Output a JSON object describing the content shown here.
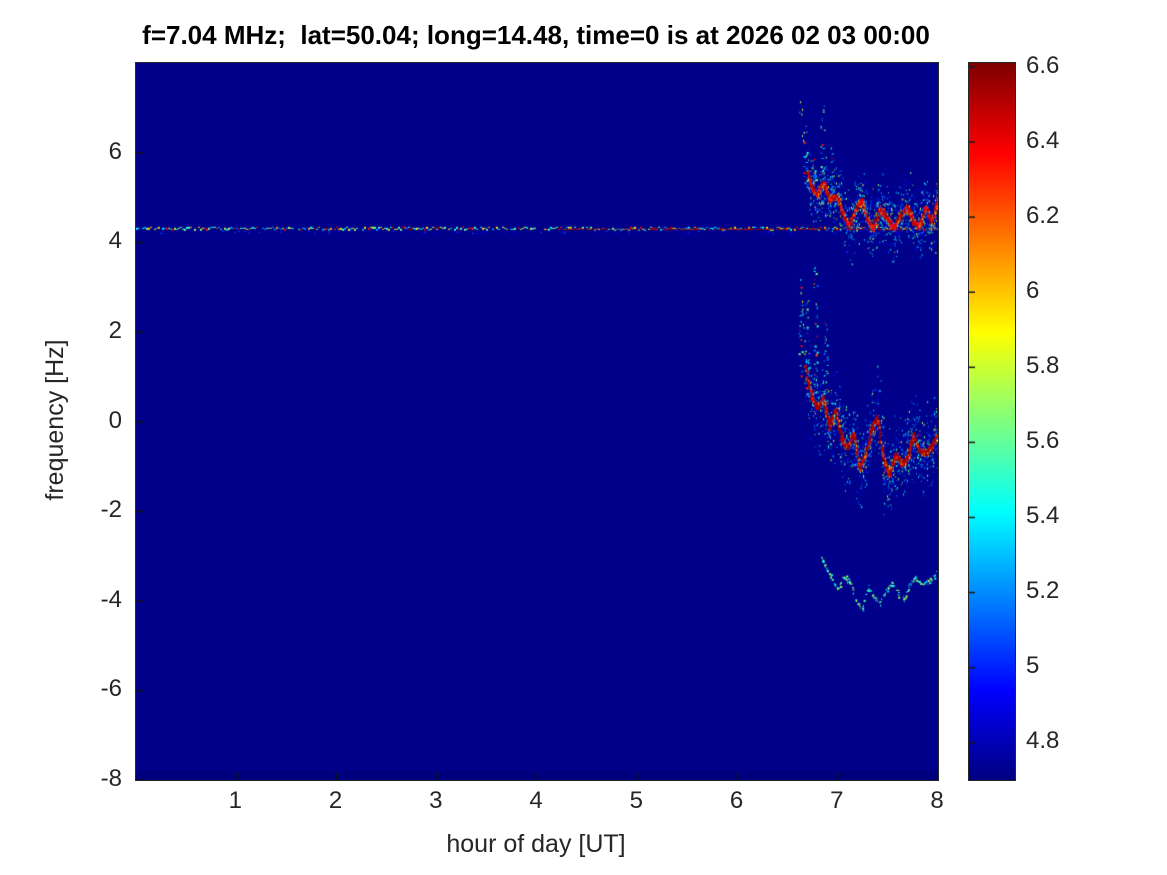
{
  "chart_data": {
    "type": "heatmap",
    "subtype": "doppler-spectrogram",
    "title": "f=7.04 MHz;  lat=50.04; long=14.48, time=0 is at 2026 02 03 00:00",
    "xlabel": "hour of day [UT]",
    "ylabel": "frequency [Hz]",
    "xlim": [
      0,
      8
    ],
    "ylim": [
      -8,
      8
    ],
    "xticks": [
      1,
      2,
      3,
      4,
      5,
      6,
      7,
      8
    ],
    "yticks": [
      6,
      4,
      2,
      0,
      -2,
      -4,
      -6,
      -8
    ],
    "grid": false,
    "colormap": "jet",
    "colorbar": {
      "position": "right",
      "min": 4.7,
      "max": 6.61,
      "ticks": [
        6.6,
        6.4,
        6.2,
        6,
        5.8,
        5.6,
        5.4,
        5.2,
        5,
        4.8
      ]
    },
    "background_value": 4.722,
    "bottom_band": {
      "height_hz": 0.22,
      "value": 4.7
    },
    "carrier_line": {
      "freq_hz": 4.3,
      "hour_start": 0,
      "hour_end": 8,
      "speckle_value_range": [
        5.15,
        6.6
      ],
      "solid_red_from_hour": 4.2,
      "red_value": 6.55
    },
    "doppler_traces": [
      {
        "name": "upper-echo-trace",
        "strength": "strong",
        "core_start_hour": 6.7,
        "core_value_range": [
          6.3,
          6.6
        ],
        "cloud_sigma_hz": 0.42,
        "points": [
          [
            6.63,
            7.1
          ],
          [
            6.66,
            6.3
          ],
          [
            6.7,
            5.6
          ],
          [
            6.74,
            5.25
          ],
          [
            6.8,
            5.05
          ],
          [
            6.86,
            5.35
          ],
          [
            6.92,
            4.95
          ],
          [
            7.0,
            5.05
          ],
          [
            7.06,
            4.6
          ],
          [
            7.12,
            4.35
          ],
          [
            7.18,
            4.75
          ],
          [
            7.24,
            4.95
          ],
          [
            7.3,
            4.5
          ],
          [
            7.36,
            4.3
          ],
          [
            7.42,
            4.75
          ],
          [
            7.5,
            4.55
          ],
          [
            7.56,
            4.3
          ],
          [
            7.62,
            4.6
          ],
          [
            7.7,
            4.8
          ],
          [
            7.76,
            4.45
          ],
          [
            7.82,
            4.35
          ],
          [
            7.88,
            4.8
          ],
          [
            7.94,
            4.45
          ],
          [
            8.0,
            4.95
          ]
        ]
      },
      {
        "name": "main-doppler-trace",
        "strength": "strong",
        "core_start_hour": 6.68,
        "core_value_range": [
          6.45,
          6.6
        ],
        "cloud_sigma_hz": 0.55,
        "points": [
          [
            6.62,
            3.2
          ],
          [
            6.65,
            2.2
          ],
          [
            6.67,
            1.4
          ],
          [
            6.7,
            0.95
          ],
          [
            6.74,
            0.55
          ],
          [
            6.8,
            0.3
          ],
          [
            6.86,
            0.55
          ],
          [
            6.92,
            -0.15
          ],
          [
            6.98,
            0.25
          ],
          [
            7.04,
            -0.35
          ],
          [
            7.1,
            -0.6
          ],
          [
            7.16,
            -0.25
          ],
          [
            7.22,
            -1.05
          ],
          [
            7.28,
            -0.75
          ],
          [
            7.34,
            -0.2
          ],
          [
            7.4,
            0.1
          ],
          [
            7.46,
            -0.85
          ],
          [
            7.52,
            -1.2
          ],
          [
            7.58,
            -0.7
          ],
          [
            7.64,
            -0.95
          ],
          [
            7.7,
            -0.8
          ],
          [
            7.76,
            -0.3
          ],
          [
            7.82,
            -0.65
          ],
          [
            7.88,
            -0.7
          ],
          [
            7.94,
            -0.55
          ],
          [
            8.0,
            -0.25
          ]
        ]
      },
      {
        "name": "lower-faint-echo",
        "strength": "faint",
        "core_start_hour": 99,
        "core_value_range": [
          5.3,
          5.8
        ],
        "cloud_sigma_hz": 0.12,
        "points": [
          [
            6.8,
            -2.9
          ],
          [
            6.88,
            -3.25
          ],
          [
            6.94,
            -3.5
          ],
          [
            7.0,
            -3.75
          ],
          [
            7.06,
            -3.45
          ],
          [
            7.12,
            -3.55
          ],
          [
            7.18,
            -4.0
          ],
          [
            7.24,
            -4.2
          ],
          [
            7.3,
            -3.7
          ],
          [
            7.36,
            -3.95
          ],
          [
            7.42,
            -4.05
          ],
          [
            7.48,
            -3.75
          ],
          [
            7.54,
            -3.6
          ],
          [
            7.6,
            -3.85
          ],
          [
            7.66,
            -3.95
          ],
          [
            7.72,
            -3.6
          ],
          [
            7.78,
            -3.45
          ],
          [
            7.84,
            -3.65
          ],
          [
            7.9,
            -3.55
          ],
          [
            7.96,
            -3.45
          ],
          [
            8.0,
            -3.25
          ]
        ]
      }
    ],
    "onset_streaks": [
      [
        6.68,
        6.6,
        5.2
      ],
      [
        6.76,
        6.1,
        5.2
      ],
      [
        6.85,
        7.05,
        4.9
      ],
      [
        6.95,
        6.25,
        5.0
      ],
      [
        6.63,
        3.1,
        1.0
      ],
      [
        6.7,
        2.7,
        0.6
      ],
      [
        6.78,
        3.45,
        0.4
      ],
      [
        6.88,
        2.3,
        0.5
      ]
    ]
  }
}
